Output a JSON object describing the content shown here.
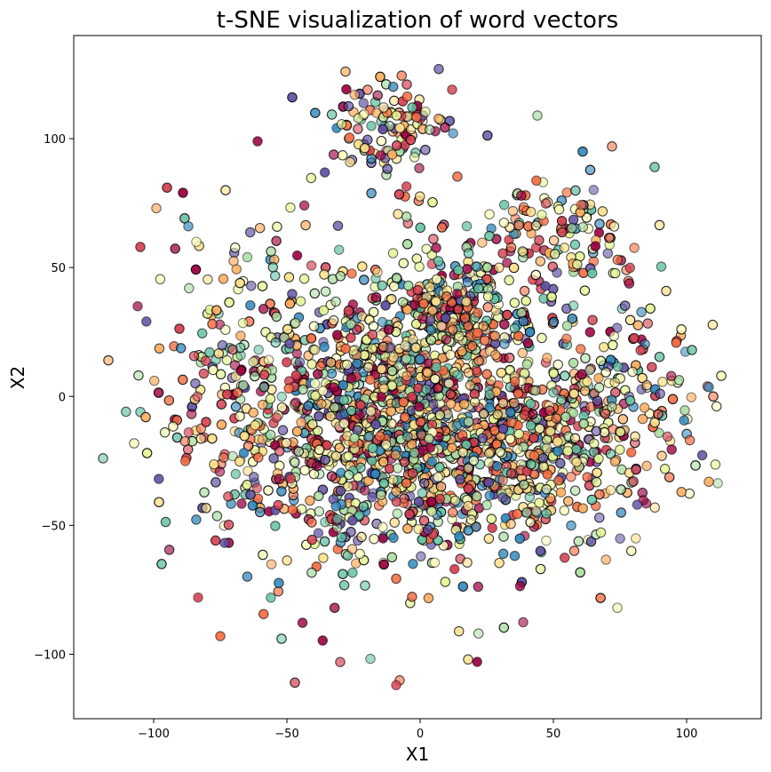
{
  "chart_data": {
    "type": "scatter",
    "title": "t-SNE visualization of word vectors",
    "xlabel": "X1",
    "ylabel": "X2",
    "xlim": [
      -130,
      128
    ],
    "ylim": [
      -125,
      140
    ],
    "xticks": [
      -100,
      -50,
      0,
      50,
      100
    ],
    "yticks": [
      -100,
      -50,
      0,
      50,
      100
    ],
    "xtick_labels": [
      "−100",
      "−50",
      "0",
      "50",
      "100"
    ],
    "ytick_labels": [
      "−100",
      "−50",
      "0",
      "50",
      "100"
    ],
    "grid": false,
    "legend": "none",
    "colormap": [
      "#9e0142",
      "#d53e4f",
      "#f46d43",
      "#fdae61",
      "#fee08b",
      "#ffffbf",
      "#e6f598",
      "#abdda4",
      "#66c2a5",
      "#3288bd",
      "#5e4fa2"
    ],
    "marker_edge_color": "#000000",
    "point_count_estimate": 2500,
    "notable_points": [
      {
        "x": -119,
        "y": -24
      },
      {
        "x": -117,
        "y": 14
      },
      {
        "x": -106,
        "y": 35
      },
      {
        "x": -105,
        "y": 58
      },
      {
        "x": -105,
        "y": -6
      },
      {
        "x": -103,
        "y": -8
      },
      {
        "x": -99,
        "y": 73
      },
      {
        "x": -98,
        "y": -41
      },
      {
        "x": -97,
        "y": -65
      },
      {
        "x": -95,
        "y": 81
      },
      {
        "x": -89,
        "y": 79
      },
      {
        "x": -87,
        "y": 66
      },
      {
        "x": -84,
        "y": 60
      },
      {
        "x": -75,
        "y": -93
      },
      {
        "x": -73,
        "y": 80
      },
      {
        "x": -61,
        "y": 99
      },
      {
        "x": -52,
        "y": -94
      },
      {
        "x": -48,
        "y": 116
      },
      {
        "x": -47,
        "y": -111
      },
      {
        "x": -30,
        "y": -103
      },
      {
        "x": -28,
        "y": 126
      },
      {
        "x": -15,
        "y": 124
      },
      {
        "x": -9,
        "y": -112
      },
      {
        "x": -5,
        "y": 121
      },
      {
        "x": 7,
        "y": 127
      },
      {
        "x": 12,
        "y": 119
      },
      {
        "x": 18,
        "y": -102
      },
      {
        "x": 44,
        "y": 109
      },
      {
        "x": 61,
        "y": 95
      },
      {
        "x": 72,
        "y": 97
      },
      {
        "x": 74,
        "y": -82
      },
      {
        "x": 88,
        "y": 89
      },
      {
        "x": 102,
        "y": 18
      },
      {
        "x": 110,
        "y": 0
      },
      {
        "x": 113,
        "y": 8
      }
    ]
  }
}
